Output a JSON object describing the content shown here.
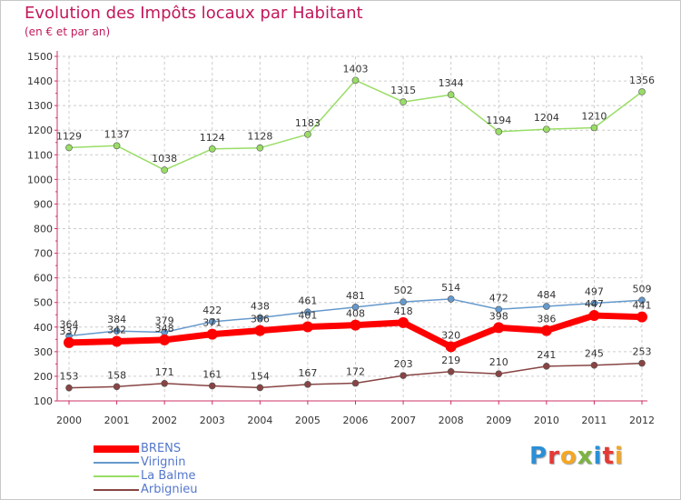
{
  "header": {
    "title": "Evolution des Impôts locaux par Habitant",
    "subtitle": "(en € et par an)"
  },
  "logo": {
    "letters": [
      "P",
      "r",
      "o",
      "x",
      "i",
      "t",
      "i"
    ]
  },
  "colors": {
    "title": "#c2185b",
    "axis": "#cc3366",
    "grid": "#cccccc",
    "legend_text": "#5577cc",
    "logo": [
      "#2a8fd6",
      "#e53935",
      "#f5a623",
      "#7cb342",
      "#2a8fd6",
      "#e53935",
      "#f5a623"
    ]
  },
  "chart_data": {
    "type": "line",
    "title": "Evolution des Impôts locaux par Habitant",
    "subtitle": "(en € et par an)",
    "xlabel": "",
    "ylabel": "",
    "ylim": [
      100,
      1500
    ],
    "yticks": [
      "100",
      "200",
      "300",
      "400",
      "500",
      "600",
      "700",
      "800",
      "900",
      "1000",
      "1100",
      "1200",
      "1300",
      "1400",
      "1500"
    ],
    "grid": true,
    "legend_position": "bottom-left",
    "categories": [
      "2000",
      "2001",
      "2002",
      "2003",
      "2004",
      "2005",
      "2006",
      "2007",
      "2008",
      "2009",
      "2010",
      "2011",
      "2012"
    ],
    "series": [
      {
        "name": "BRENS",
        "color": "#ff0000",
        "emphasis": true,
        "values": [
          337,
          342,
          348,
          371,
          386,
          401,
          408,
          418,
          320,
          398,
          386,
          447,
          441
        ],
        "labels": [
          "337",
          "342",
          "348",
          "371",
          "386",
          "401",
          "408",
          "418",
          "320",
          "398",
          "386",
          "447",
          "441"
        ]
      },
      {
        "name": "Virignin",
        "color": "#6699cc",
        "emphasis": false,
        "values": [
          364,
          384,
          379,
          422,
          438,
          461,
          481,
          502,
          514,
          472,
          484,
          497,
          509
        ],
        "labels": [
          "364",
          "384",
          "379",
          "422",
          "438",
          "461",
          "481",
          "502",
          "514",
          "472",
          "484",
          "497",
          "509"
        ]
      },
      {
        "name": "La Balme",
        "color": "#99dd66",
        "emphasis": false,
        "values": [
          1129,
          1137,
          1038,
          1124,
          1128,
          1183,
          1403,
          1315,
          1344,
          1194,
          1204,
          1210,
          1356
        ],
        "labels": [
          "1129",
          "1137",
          "1038",
          "1124",
          "1128",
          "1183",
          "1403",
          "1315",
          "1344",
          "1194",
          "1204",
          "1210",
          "1356"
        ]
      },
      {
        "name": "Arbignieu",
        "color": "#884444",
        "emphasis": false,
        "values": [
          153,
          158,
          171,
          161,
          154,
          167,
          172,
          203,
          219,
          210,
          241,
          245,
          253
        ],
        "labels": [
          "153",
          "158",
          "171",
          "161",
          "154",
          "167",
          "172",
          "203",
          "219",
          "210",
          "241",
          "245",
          "253"
        ]
      }
    ]
  }
}
